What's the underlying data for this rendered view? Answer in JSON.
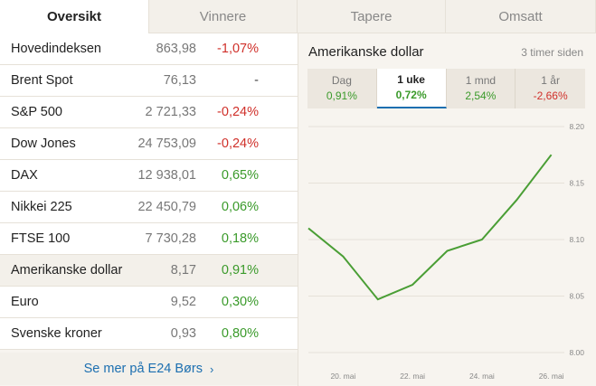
{
  "tabs": [
    {
      "label": "Oversikt",
      "active": true
    },
    {
      "label": "Vinnere",
      "active": false
    },
    {
      "label": "Tapere",
      "active": false
    },
    {
      "label": "Omsatt",
      "active": false
    }
  ],
  "markets": [
    {
      "name": "Hovedindeksen",
      "value": "863,98",
      "change": "-1,07%",
      "trend": "neg"
    },
    {
      "name": "Brent Spot",
      "value": "76,13",
      "change": "-",
      "trend": "neu"
    },
    {
      "name": "S&P 500",
      "value": "2 721,33",
      "change": "-0,24%",
      "trend": "neg"
    },
    {
      "name": "Dow Jones",
      "value": "24 753,09",
      "change": "-0,24%",
      "trend": "neg"
    },
    {
      "name": "DAX",
      "value": "12 938,01",
      "change": "0,65%",
      "trend": "pos"
    },
    {
      "name": "Nikkei 225",
      "value": "22 450,79",
      "change": "0,06%",
      "trend": "pos"
    },
    {
      "name": "FTSE 100",
      "value": "7 730,28",
      "change": "0,18%",
      "trend": "pos"
    },
    {
      "name": "Amerikanske dollar",
      "value": "8,17",
      "change": "0,91%",
      "trend": "pos",
      "selected": true
    },
    {
      "name": "Euro",
      "value": "9,52",
      "change": "0,30%",
      "trend": "pos"
    },
    {
      "name": "Svenske kroner",
      "value": "0,93",
      "change": "0,80%",
      "trend": "pos"
    }
  ],
  "more_link": {
    "label": "Se mer på E24 Børs",
    "chevron": "›"
  },
  "detail": {
    "title": "Amerikanske dollar",
    "updated": "3 timer siden",
    "periods": [
      {
        "label": "Dag",
        "change": "0,91%",
        "trend": "pos",
        "active": false
      },
      {
        "label": "1 uke",
        "change": "0,72%",
        "trend": "pos",
        "active": true
      },
      {
        "label": "1 mnd",
        "change": "2,54%",
        "trend": "pos",
        "active": false
      },
      {
        "label": "1 år",
        "change": "-2,66%",
        "trend": "neg",
        "active": false
      }
    ]
  },
  "colors": {
    "positive": "#3a9a2a",
    "negative": "#d0302a",
    "link": "#1c6fb0",
    "line": "#4a9e35"
  },
  "chart_data": {
    "type": "line",
    "x": [
      "19. mai",
      "20. mai",
      "21. mai",
      "22. mai",
      "23. mai",
      "24. mai",
      "25. mai",
      "26. mai",
      "27. mai"
    ],
    "values": [
      8.11,
      8.085,
      8.047,
      8.06,
      8.09,
      8.1,
      8.135,
      8.175,
      null
    ],
    "x_tick_labels": [
      "20. mai",
      "22. mai",
      "24. mai",
      "26. mai"
    ],
    "y_tick_labels": [
      "8.20",
      "8.15",
      "8.10",
      "8.05",
      "8.00"
    ],
    "ylim": [
      8.0,
      8.2
    ],
    "grid": true,
    "legend": "none"
  }
}
